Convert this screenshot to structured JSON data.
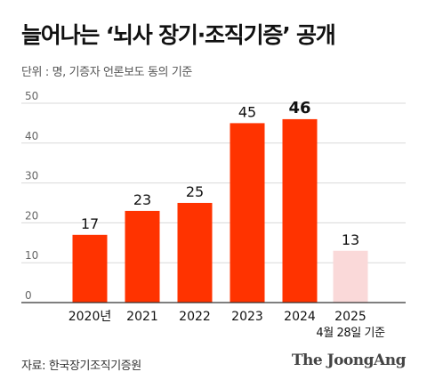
{
  "header": {
    "title": "늘어나는 ‘뇌사 장기·조직기증’ 공개",
    "subtitle": "단위 : 명, 기증자 언론보도 동의 기준"
  },
  "footer": {
    "source": "자료: 한국장기조직기증원",
    "brand": "The JoongAng"
  },
  "colors": {
    "bar": "#ff3300",
    "bar_highlight": "#fad9d9",
    "gridline": "#d9d9d9",
    "axis": "#333333"
  },
  "chart_data": {
    "type": "bar",
    "categories": [
      "2020년",
      "2021",
      "2022",
      "2023",
      "2024",
      "2025"
    ],
    "category_notes": [
      "",
      "",
      "",
      "",
      "",
      "4월 28일 기준"
    ],
    "values": [
      17,
      23,
      25,
      45,
      46,
      13
    ],
    "highlight_last": true,
    "bold_index": 4,
    "ylim": [
      0,
      50
    ],
    "yticks": [
      0,
      10,
      20,
      30,
      40,
      50
    ],
    "grid": true,
    "xlabel": "",
    "ylabel": ""
  }
}
